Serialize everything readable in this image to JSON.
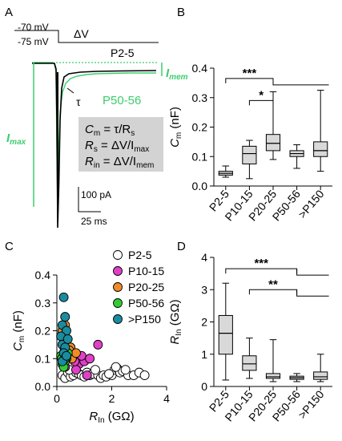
{
  "colors": {
    "p2_5": "#ffffff",
    "p10_15": "#e040c8",
    "p20_25": "#f08c28",
    "p50_56": "#33cc33",
    "gtP150": "#1a8ca0",
    "trace_green": "#3ccd6e",
    "trace_black": "#000000",
    "box_fill": "#d9d9d9",
    "formula_box": "#d3d3d3"
  },
  "panelA": {
    "letter": "A",
    "protocol": {
      "v1": "-70 mV",
      "v2": "-75 mV",
      "delta": "ΔV"
    },
    "label_p2_5": "P2-5",
    "label_p50_56": "P50-56",
    "label_imem_I": "I",
    "label_imem_sub": "mem",
    "label_imax_I": "I",
    "label_imax_sub": "max",
    "label_tau": "τ",
    "formulas": {
      "cm_lhs": "C",
      "cm_lhs_sub": "m",
      "cm_rhs": " = τ/R",
      "cm_rhs_sub": "s",
      "rs_lhs": "R",
      "rs_lhs_sub": "s",
      "rs_rhs": " = ΔV/I",
      "rs_rhs_sub": "max",
      "rin_lhs": "R",
      "rin_lhs_sub": "in",
      "rin_rhs": " = ΔV/I",
      "rin_rhs_sub": "mem"
    },
    "scale_current": "100 pA",
    "scale_time": "25 ms"
  },
  "chart_data": [
    {
      "panel": "B",
      "type": "box",
      "ylabel_main": "C",
      "ylabel_sub": "m",
      "ylabel_unit": " (nF)",
      "ylim": [
        0,
        0.4
      ],
      "yticks": [
        "0.0",
        "0.1",
        "0.2",
        "0.3",
        "0.4"
      ],
      "categories": [
        "P2-5",
        "P10-15",
        "P20-25",
        "P50-56",
        ">P150"
      ],
      "boxes": [
        {
          "min": 0.03,
          "q1": 0.037,
          "median": 0.043,
          "q3": 0.05,
          "max": 0.068
        },
        {
          "min": 0.025,
          "q1": 0.075,
          "median": 0.11,
          "q3": 0.135,
          "max": 0.155
        },
        {
          "min": 0.09,
          "q1": 0.12,
          "median": 0.145,
          "q3": 0.175,
          "max": 0.32
        },
        {
          "min": 0.06,
          "q1": 0.1,
          "median": 0.11,
          "q3": 0.12,
          "max": 0.14
        },
        {
          "min": 0.05,
          "q1": 0.1,
          "median": 0.12,
          "q3": 0.15,
          "max": 0.325
        }
      ],
      "significance": [
        {
          "label": "***",
          "from": 0,
          "to": 2,
          "branch_to": 4,
          "level": 0.365
        },
        {
          "label": "*",
          "from": 1,
          "to": 2,
          "level": 0.29
        }
      ]
    },
    {
      "panel": "C",
      "type": "scatter",
      "xlabel_main": "R",
      "xlabel_sub": "In",
      "xlabel_unit": " (GΩ)",
      "ylabel_main": "C",
      "ylabel_sub": "m",
      "ylabel_unit": " (nF)",
      "xlim": [
        0,
        4
      ],
      "ylim": [
        0,
        0.4
      ],
      "xticks": [
        "0",
        "2",
        "4"
      ],
      "yticks": [
        "0.0",
        "0.1",
        "0.2",
        "0.3",
        "0.4"
      ],
      "series": [
        {
          "name": "P2-5",
          "color_key": "p2_5",
          "points": [
            [
              0.2,
              0.04
            ],
            [
              0.3,
              0.03
            ],
            [
              0.4,
              0.05
            ],
            [
              0.5,
              0.035
            ],
            [
              0.6,
              0.04
            ],
            [
              0.7,
              0.05
            ],
            [
              0.8,
              0.045
            ],
            [
              0.9,
              0.04
            ],
            [
              1.0,
              0.035
            ],
            [
              1.1,
              0.05
            ],
            [
              1.2,
              0.04
            ],
            [
              1.3,
              0.045
            ],
            [
              1.5,
              0.04
            ],
            [
              1.6,
              0.03
            ],
            [
              1.7,
              0.04
            ],
            [
              1.8,
              0.035
            ],
            [
              2.0,
              0.04
            ],
            [
              2.1,
              0.06
            ],
            [
              2.2,
              0.065
            ],
            [
              2.3,
              0.05
            ],
            [
              2.4,
              0.055
            ],
            [
              2.6,
              0.04
            ],
            [
              2.8,
              0.04
            ],
            [
              3.0,
              0.05
            ],
            [
              3.2,
              0.04
            ],
            [
              0.45,
              0.06
            ],
            [
              1.4,
              0.06
            ],
            [
              2.15,
              0.07
            ],
            [
              1.9,
              0.045
            ],
            [
              2.5,
              0.06
            ]
          ]
        },
        {
          "name": "P10-15",
          "color_key": "p10_15",
          "points": [
            [
              0.4,
              0.1
            ],
            [
              0.6,
              0.12
            ],
            [
              0.8,
              0.08
            ],
            [
              1.0,
              0.09
            ],
            [
              0.7,
              0.06
            ],
            [
              1.2,
              0.1
            ],
            [
              1.5,
              0.15
            ],
            [
              0.5,
              0.14
            ],
            [
              0.9,
              0.11
            ],
            [
              0.3,
              0.07
            ],
            [
              1.1,
              0.04
            ],
            [
              0.65,
              0.09
            ]
          ]
        },
        {
          "name": "P20-25",
          "color_key": "p20_25",
          "points": [
            [
              0.2,
              0.2
            ],
            [
              0.3,
              0.18
            ],
            [
              0.35,
              0.15
            ],
            [
              0.4,
              0.12
            ],
            [
              0.5,
              0.14
            ],
            [
              0.25,
              0.17
            ],
            [
              0.6,
              0.11
            ],
            [
              0.45,
              0.13
            ],
            [
              0.3,
              0.22
            ],
            [
              0.55,
              0.1
            ],
            [
              0.7,
              0.12
            ]
          ]
        },
        {
          "name": "P50-56",
          "color_key": "p50_56",
          "points": [
            [
              0.2,
              0.1
            ],
            [
              0.25,
              0.12
            ],
            [
              0.3,
              0.11
            ],
            [
              0.22,
              0.09
            ],
            [
              0.28,
              0.13
            ],
            [
              0.35,
              0.1
            ],
            [
              0.15,
              0.11
            ],
            [
              0.2,
              0.08
            ],
            [
              0.3,
              0.09
            ],
            [
              0.4,
              0.12
            ],
            [
              0.18,
              0.1
            ],
            [
              0.25,
              0.07
            ]
          ]
        },
        {
          "name": ">P150",
          "color_key": "gtP150",
          "points": [
            [
              0.25,
              0.32
            ],
            [
              0.3,
              0.25
            ],
            [
              0.2,
              0.22
            ],
            [
              0.35,
              0.2
            ],
            [
              0.15,
              0.18
            ],
            [
              0.2,
              0.15
            ],
            [
              0.3,
              0.14
            ],
            [
              0.4,
              0.17
            ],
            [
              0.25,
              0.12
            ],
            [
              0.3,
              0.1
            ],
            [
              0.2,
              0.09
            ],
            [
              0.35,
              0.11
            ]
          ]
        }
      ]
    },
    {
      "panel": "D",
      "type": "box",
      "ylabel_main": "R",
      "ylabel_sub": "In",
      "ylabel_unit": " (GΩ)",
      "ylim": [
        0,
        4
      ],
      "yticks": [
        "0",
        "1",
        "2",
        "3",
        "4"
      ],
      "categories": [
        "P2-5",
        "P10-15",
        "P20-25",
        "P50-56",
        ">P150"
      ],
      "boxes": [
        {
          "min": 0.2,
          "q1": 1.0,
          "median": 1.65,
          "q3": 2.2,
          "max": 3.2
        },
        {
          "min": 0.25,
          "q1": 0.5,
          "median": 0.7,
          "q3": 0.95,
          "max": 1.5
        },
        {
          "min": 0.15,
          "q1": 0.25,
          "median": 0.3,
          "q3": 0.4,
          "max": 1.45
        },
        {
          "min": 0.15,
          "q1": 0.22,
          "median": 0.27,
          "q3": 0.32,
          "max": 0.4
        },
        {
          "min": 0.15,
          "q1": 0.22,
          "median": 0.3,
          "q3": 0.45,
          "max": 1.0
        }
      ],
      "significance": [
        {
          "label": "***",
          "from": 0,
          "to": 3,
          "branch_to": 4,
          "level": 3.65
        },
        {
          "label": "**",
          "from": 1,
          "to": 3,
          "branch_to": 4,
          "level": 3.0
        }
      ]
    }
  ]
}
